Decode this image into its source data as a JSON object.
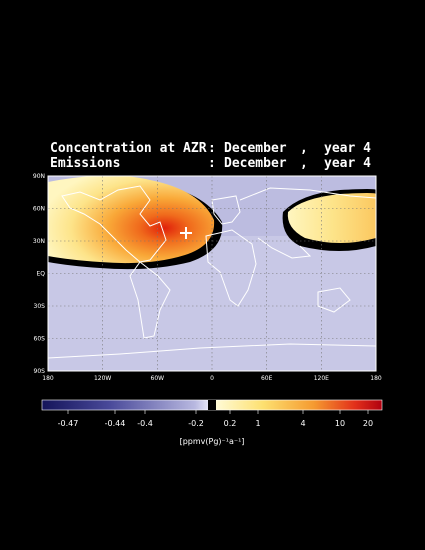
{
  "header": {
    "lines": [
      [
        "Concentration at AZR",
        ":",
        "December",
        ",",
        "year 4"
      ],
      [
        "Emissions",
        ":",
        "December",
        ",",
        "year 4"
      ]
    ]
  },
  "map": {
    "lat_labels": [
      "90N",
      "60N",
      "30N",
      "EQ",
      "30S",
      "60S",
      "90S"
    ],
    "lon_labels": [
      "180",
      "120W",
      "60W",
      "0",
      "60E",
      "120E",
      "180"
    ]
  },
  "colorbar": {
    "labels": [
      "-0.47",
      "-0.44",
      "-0.4",
      "-0.2",
      "0.2",
      "1",
      "4",
      "10",
      "20"
    ],
    "unit": "[ppmv(Pg)⁻¹a⁻¹]"
  }
}
